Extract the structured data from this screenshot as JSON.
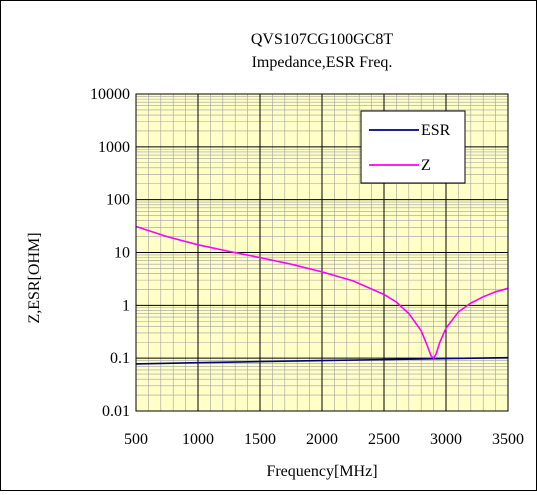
{
  "chart_data": {
    "type": "line",
    "title": "QVS107CG100GC8T",
    "subtitle": "Impedance,ESR Freq.",
    "xlabel": "Frequency[MHz]",
    "ylabel": "Z,ESR[OHM]",
    "x_scale": "linear",
    "y_scale": "log",
    "xlim": [
      500,
      3500
    ],
    "ylim": [
      0.01,
      10000
    ],
    "x_ticks": [
      500,
      1000,
      1500,
      2000,
      2500,
      3000,
      3500
    ],
    "x_tick_labels": [
      "500",
      "1000",
      "1500",
      "2000",
      "2500",
      "3000",
      "3500"
    ],
    "y_ticks": [
      0.01,
      0.1,
      1,
      10,
      100,
      1000,
      10000
    ],
    "y_tick_labels": [
      "0.01",
      "0.1",
      "1",
      "10",
      "100",
      "1000",
      "10000"
    ],
    "grid": true,
    "plot_background": "#ffffc8",
    "grid_major_color": "#000000",
    "grid_minor_color": "#a0a0a0",
    "legend_position": "top-right",
    "series": [
      {
        "name": "ESR",
        "color": "#000080",
        "x": [
          500,
          1000,
          1500,
          2000,
          2500,
          3000,
          3500
        ],
        "y": [
          0.078,
          0.082,
          0.086,
          0.09,
          0.094,
          0.098,
          0.102
        ]
      },
      {
        "name": "Z",
        "color": "#ff00ff",
        "x": [
          500,
          750,
          1000,
          1250,
          1500,
          1750,
          2000,
          2250,
          2500,
          2600,
          2700,
          2800,
          2850,
          2880,
          2900,
          2920,
          2950,
          3000,
          3100,
          3200,
          3300,
          3400,
          3500
        ],
        "y": [
          31,
          20,
          14,
          10.5,
          8,
          6,
          4.3,
          2.9,
          1.6,
          1.15,
          0.7,
          0.33,
          0.17,
          0.11,
          0.1,
          0.12,
          0.2,
          0.37,
          0.75,
          1.1,
          1.45,
          1.8,
          2.1
        ]
      }
    ]
  }
}
